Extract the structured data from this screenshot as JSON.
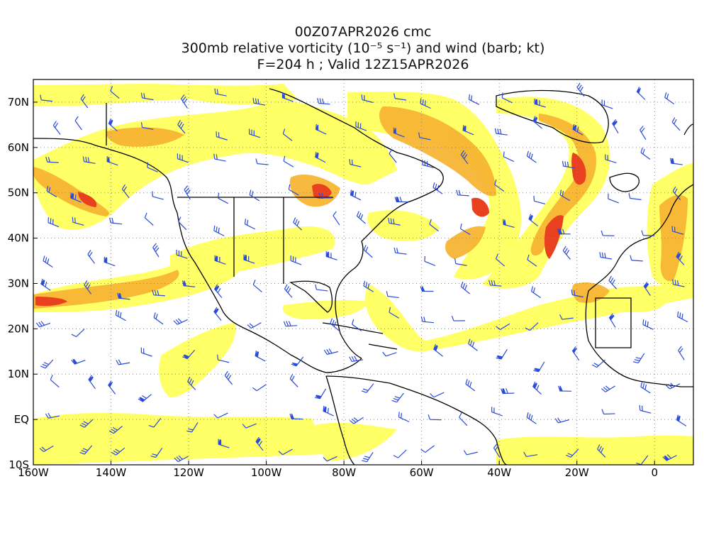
{
  "title": {
    "line1": "00Z07APR2026 cmc",
    "line2": "300mb relative vorticity (10⁻⁵ s⁻¹) and wind (barb; kt)",
    "line3": "F=204 h ; Valid 12Z15APR2026"
  },
  "map": {
    "projection": "equirectangular",
    "lon_range": [
      -160,
      10
    ],
    "lat_range": [
      -10,
      75
    ],
    "grid": true,
    "colors": {
      "background": "#ffffff",
      "shade_low": "#ffff66",
      "shade_mid1": "#f3e13a",
      "shade_mid2": "#f7b534",
      "shade_mid3": "#f48a2e",
      "shade_high": "#e9401f",
      "shade_max": "#d20c0c",
      "coast": "#000000",
      "grid": "#888888",
      "barb": "#2a4ad8"
    },
    "x_ticks": [
      "160W",
      "140W",
      "120W",
      "100W",
      "80W",
      "60W",
      "40W",
      "20W",
      "0"
    ],
    "y_ticks": [
      "70N",
      "60N",
      "50N",
      "40N",
      "30N",
      "20N",
      "10N",
      "EQ",
      "10S"
    ]
  }
}
